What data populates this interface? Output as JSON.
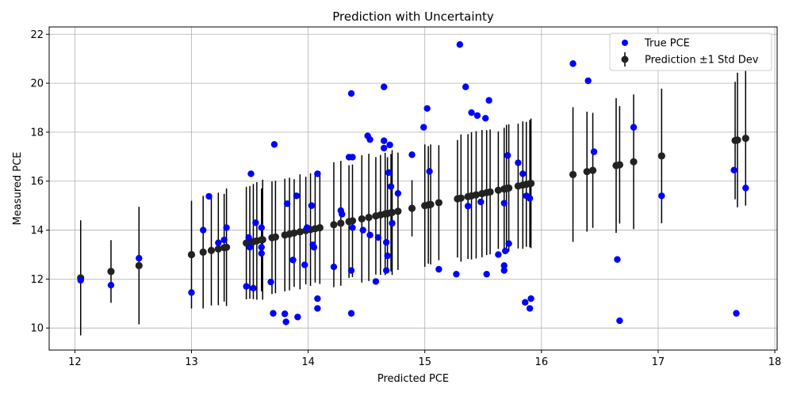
{
  "chart_data": {
    "type": "scatter",
    "title": "Prediction with Uncertainty",
    "xlabel": "Predicted PCE",
    "ylabel": "Measured PCE",
    "xlim": [
      11.78,
      18.02
    ],
    "ylim": [
      9.1,
      22.3
    ],
    "xticks": [
      12,
      13,
      14,
      15,
      16,
      17,
      18
    ],
    "yticks": [
      10,
      12,
      14,
      16,
      18,
      20,
      22
    ],
    "grid": true,
    "legend_position": "top-right",
    "colors": {
      "true": "#0000ff",
      "pred": "#222222",
      "err": "#000000"
    },
    "series": [
      {
        "name": "True PCE",
        "kind": "points",
        "points": [
          [
            12.05,
            11.95
          ],
          [
            12.31,
            11.75
          ],
          [
            12.55,
            12.85
          ],
          [
            13.0,
            11.45
          ],
          [
            13.1,
            14.0
          ],
          [
            13.15,
            15.38
          ],
          [
            13.23,
            13.48
          ],
          [
            13.28,
            13.6
          ],
          [
            13.3,
            14.1
          ],
          [
            13.47,
            11.7
          ],
          [
            13.49,
            13.7
          ],
          [
            13.5,
            13.3
          ],
          [
            13.51,
            16.3
          ],
          [
            13.53,
            11.63
          ],
          [
            13.55,
            14.3
          ],
          [
            13.6,
            14.1
          ],
          [
            13.6,
            13.3
          ],
          [
            13.6,
            13.05
          ],
          [
            13.68,
            11.88
          ],
          [
            13.7,
            10.6
          ],
          [
            13.71,
            17.5
          ],
          [
            13.8,
            10.58
          ],
          [
            13.81,
            10.25
          ],
          [
            13.82,
            15.08
          ],
          [
            13.87,
            12.78
          ],
          [
            13.9,
            15.4
          ],
          [
            13.91,
            10.45
          ],
          [
            13.97,
            12.58
          ],
          [
            13.99,
            14.1
          ],
          [
            14.03,
            15.0
          ],
          [
            14.04,
            13.4
          ],
          [
            14.05,
            13.3
          ],
          [
            14.08,
            16.3
          ],
          [
            14.08,
            11.2
          ],
          [
            14.08,
            10.8
          ],
          [
            14.22,
            12.5
          ],
          [
            14.28,
            14.8
          ],
          [
            14.29,
            14.65
          ],
          [
            14.35,
            16.98
          ],
          [
            14.37,
            12.35
          ],
          [
            14.37,
            19.58
          ],
          [
            14.37,
            10.6
          ],
          [
            14.38,
            16.98
          ],
          [
            14.38,
            14.1
          ],
          [
            14.47,
            14.0
          ],
          [
            14.51,
            17.85
          ],
          [
            14.53,
            17.7
          ],
          [
            14.53,
            13.8
          ],
          [
            14.58,
            11.9
          ],
          [
            14.6,
            13.7
          ],
          [
            14.65,
            17.65
          ],
          [
            14.65,
            17.35
          ],
          [
            14.65,
            19.85
          ],
          [
            14.67,
            12.35
          ],
          [
            14.67,
            13.5
          ],
          [
            14.68,
            12.95
          ],
          [
            14.69,
            16.35
          ],
          [
            14.7,
            17.48
          ],
          [
            14.71,
            15.78
          ],
          [
            14.72,
            14.28
          ],
          [
            14.77,
            15.5
          ],
          [
            14.89,
            17.08
          ],
          [
            14.99,
            18.2
          ],
          [
            15.02,
            18.97
          ],
          [
            15.04,
            16.4
          ],
          [
            15.12,
            12.4
          ],
          [
            15.27,
            12.2
          ],
          [
            15.3,
            21.58
          ],
          [
            15.35,
            19.85
          ],
          [
            15.37,
            14.98
          ],
          [
            15.4,
            18.8
          ],
          [
            15.45,
            18.68
          ],
          [
            15.48,
            15.15
          ],
          [
            15.52,
            18.57
          ],
          [
            15.53,
            12.2
          ],
          [
            15.55,
            19.3
          ],
          [
            15.63,
            13.0
          ],
          [
            15.68,
            15.1
          ],
          [
            15.68,
            12.55
          ],
          [
            15.68,
            12.35
          ],
          [
            15.69,
            13.15
          ],
          [
            15.71,
            17.05
          ],
          [
            15.72,
            13.45
          ],
          [
            15.8,
            16.75
          ],
          [
            15.84,
            16.3
          ],
          [
            15.86,
            11.05
          ],
          [
            15.87,
            15.4
          ],
          [
            15.9,
            15.3
          ],
          [
            15.9,
            10.8
          ],
          [
            15.91,
            11.2
          ],
          [
            16.27,
            20.8
          ],
          [
            16.4,
            20.1
          ],
          [
            16.45,
            17.2
          ],
          [
            16.65,
            12.8
          ],
          [
            16.67,
            10.3
          ],
          [
            16.79,
            18.2
          ],
          [
            17.03,
            15.4
          ],
          [
            17.65,
            16.45
          ],
          [
            17.67,
            10.6
          ],
          [
            17.75,
            15.72
          ]
        ]
      },
      {
        "name": "Prediction ±1 Std Dev",
        "kind": "errorbar",
        "points": [
          [
            12.05,
            12.05,
            2.35
          ],
          [
            12.31,
            12.31,
            1.28
          ],
          [
            12.55,
            12.55,
            2.4
          ],
          [
            13.0,
            13.0,
            2.2
          ],
          [
            13.1,
            13.1,
            2.3
          ],
          [
            13.17,
            13.17,
            2.25
          ],
          [
            13.23,
            13.23,
            2.3
          ],
          [
            13.28,
            13.28,
            2.2
          ],
          [
            13.3,
            13.3,
            2.4
          ],
          [
            13.47,
            13.47,
            2.3
          ],
          [
            13.5,
            13.5,
            2.3
          ],
          [
            13.53,
            13.53,
            2.35
          ],
          [
            13.56,
            13.56,
            2.4
          ],
          [
            13.6,
            13.6,
            2.1
          ],
          [
            13.61,
            13.61,
            2.45
          ],
          [
            13.69,
            13.69,
            2.3
          ],
          [
            13.72,
            13.72,
            2.3
          ],
          [
            13.8,
            13.8,
            2.3
          ],
          [
            13.84,
            13.84,
            2.3
          ],
          [
            13.88,
            13.88,
            2.2
          ],
          [
            13.93,
            13.93,
            2.35
          ],
          [
            13.98,
            13.98,
            2.2
          ],
          [
            14.02,
            14.02,
            2.3
          ],
          [
            14.06,
            14.06,
            2.2
          ],
          [
            14.1,
            14.1,
            2.3
          ],
          [
            14.22,
            14.22,
            2.55
          ],
          [
            14.28,
            14.28,
            2.55
          ],
          [
            14.35,
            14.35,
            2.3
          ],
          [
            14.38,
            14.38,
            2.3
          ],
          [
            14.46,
            14.46,
            2.6
          ],
          [
            14.52,
            14.52,
            2.6
          ],
          [
            14.58,
            14.58,
            2.4
          ],
          [
            14.62,
            14.62,
            2.45
          ],
          [
            14.66,
            14.66,
            2.5
          ],
          [
            14.68,
            14.68,
            2.3
          ],
          [
            14.71,
            14.71,
            2.4
          ],
          [
            14.72,
            14.72,
            2.55
          ],
          [
            14.77,
            14.77,
            2.4
          ],
          [
            14.89,
            14.89,
            1.15
          ],
          [
            15.0,
            15.0,
            2.5
          ],
          [
            15.03,
            15.03,
            2.4
          ],
          [
            15.05,
            15.05,
            2.45
          ],
          [
            15.12,
            15.12,
            2.35
          ],
          [
            15.28,
            15.28,
            2.4
          ],
          [
            15.31,
            15.31,
            2.6
          ],
          [
            15.37,
            15.37,
            2.55
          ],
          [
            15.4,
            15.4,
            2.6
          ],
          [
            15.44,
            15.44,
            2.6
          ],
          [
            15.49,
            15.49,
            2.6
          ],
          [
            15.53,
            15.53,
            2.55
          ],
          [
            15.56,
            15.56,
            2.55
          ],
          [
            15.63,
            15.63,
            2.4
          ],
          [
            15.68,
            15.68,
            2.5
          ],
          [
            15.7,
            15.7,
            2.6
          ],
          [
            15.72,
            15.72,
            2.6
          ],
          [
            15.8,
            15.8,
            2.55
          ],
          [
            15.84,
            15.84,
            2.6
          ],
          [
            15.87,
            15.87,
            2.55
          ],
          [
            15.9,
            15.9,
            2.6
          ],
          [
            15.91,
            15.91,
            2.65
          ],
          [
            16.27,
            16.27,
            2.75
          ],
          [
            16.39,
            16.39,
            2.45
          ],
          [
            16.44,
            16.44,
            2.35
          ],
          [
            16.64,
            16.64,
            2.75
          ],
          [
            16.67,
            16.67,
            2.4
          ],
          [
            16.79,
            16.79,
            2.75
          ],
          [
            17.03,
            17.03,
            2.75
          ],
          [
            17.66,
            17.66,
            2.4
          ],
          [
            17.68,
            17.68,
            2.75
          ],
          [
            17.75,
            17.75,
            2.75
          ]
        ]
      }
    ]
  }
}
